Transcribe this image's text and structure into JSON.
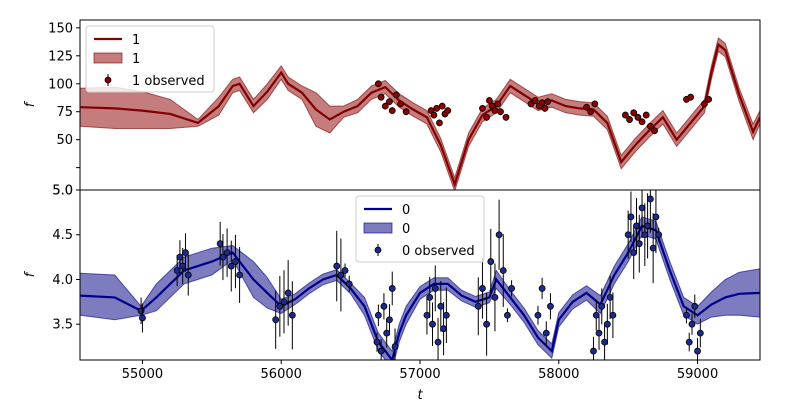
{
  "chart_data": [
    {
      "type": "line",
      "ylabel": "f",
      "xlim": [
        54550,
        59450
      ],
      "ylim": [
        5,
        157
      ],
      "yticks": [
        5,
        25,
        50,
        75,
        100,
        125,
        150
      ],
      "ytick_labels": [
        "5.0",
        "",
        "50",
        "75",
        "100",
        "125",
        "150"
      ],
      "legend_position": "upper-left",
      "legend": [
        "1",
        "1",
        "1 observed"
      ],
      "colors": {
        "line": "#800000",
        "band": "#b05050",
        "points": "#8b0000"
      },
      "model": {
        "x": [
          54550,
          54800,
          55000,
          55200,
          55400,
          55550,
          55650,
          55700,
          55800,
          55900,
          56000,
          56050,
          56150,
          56250,
          56350,
          56450,
          56550,
          56650,
          56750,
          56850,
          56950,
          57050,
          57150,
          57250,
          57350,
          57450,
          57550,
          57650,
          57750,
          57850,
          57950,
          58050,
          58150,
          58250,
          58350,
          58450,
          58550,
          58650,
          58750,
          58850,
          58950,
          59050,
          59100,
          59150,
          59200,
          59300,
          59400,
          59450
        ],
        "y": [
          79,
          78,
          76,
          73,
          65,
          80,
          98,
          100,
          80,
          93,
          110,
          100,
          92,
          77,
          68,
          75,
          80,
          92,
          97,
          85,
          77,
          70,
          45,
          10,
          50,
          72,
          80,
          98,
          90,
          82,
          85,
          80,
          78,
          77,
          65,
          30,
          45,
          58,
          70,
          50,
          65,
          80,
          110,
          135,
          130,
          90,
          57,
          70
        ],
        "lower": [
          62,
          60,
          60,
          60,
          62,
          72,
          92,
          94,
          74,
          86,
          104,
          94,
          86,
          62,
          56,
          70,
          74,
          86,
          91,
          79,
          71,
          64,
          39,
          4,
          44,
          66,
          74,
          92,
          84,
          76,
          79,
          74,
          72,
          71,
          59,
          24,
          39,
          52,
          64,
          44,
          59,
          74,
          104,
          129,
          124,
          84,
          50,
          64
        ],
        "upper": [
          96,
          97,
          93,
          86,
          68,
          88,
          104,
          106,
          86,
          100,
          116,
          106,
          98,
          92,
          80,
          80,
          86,
          98,
          103,
          91,
          83,
          76,
          51,
          16,
          56,
          78,
          86,
          104,
          96,
          88,
          91,
          86,
          84,
          83,
          71,
          36,
          51,
          64,
          76,
          56,
          71,
          86,
          116,
          141,
          136,
          96,
          64,
          76
        ]
      },
      "observed": {
        "x": [
          56700,
          56720,
          56750,
          56780,
          56800,
          56830,
          56860,
          56900,
          57080,
          57100,
          57120,
          57140,
          57160,
          57180,
          57200,
          57450,
          57480,
          57500,
          57520,
          57540,
          57560,
          57580,
          57620,
          57800,
          57830,
          57860,
          57880,
          57900,
          57920,
          58200,
          58230,
          58260,
          58480,
          58510,
          58540,
          58570,
          58600,
          58630,
          58660,
          58690,
          58920,
          58950,
          59050,
          59080
        ],
        "y": [
          100,
          88,
          80,
          84,
          76,
          90,
          82,
          75,
          76,
          72,
          78,
          65,
          80,
          73,
          76,
          78,
          70,
          85,
          80,
          76,
          82,
          75,
          70,
          82,
          85,
          80,
          83,
          78,
          84,
          79,
          75,
          82,
          72,
          68,
          74,
          70,
          66,
          72,
          62,
          58,
          86,
          88,
          82,
          86
        ]
      }
    },
    {
      "type": "line",
      "xlabel": "t",
      "ylabel": "f",
      "xlim": [
        54550,
        59450
      ],
      "ylim": [
        3.1,
        5.0
      ],
      "xticks": [
        55000,
        56000,
        57000,
        58000,
        59000
      ],
      "yticks": [
        3.5,
        4.0,
        4.5,
        5.0
      ],
      "ytick_labels": [
        "3.5",
        "4.0",
        "4.5",
        "5.0"
      ],
      "legend_position": "upper-center",
      "legend": [
        "0",
        "0",
        "0 observed"
      ],
      "colors": {
        "line": "#00008b",
        "band": "#5050a8",
        "points": "#1c2a8c"
      },
      "model": {
        "x": [
          54550,
          54800,
          54990,
          55100,
          55300,
          55500,
          55650,
          55800,
          55900,
          56000,
          56100,
          56200,
          56300,
          56400,
          56500,
          56600,
          56700,
          56800,
          56850,
          56900,
          57000,
          57100,
          57200,
          57300,
          57400,
          57500,
          57550,
          57650,
          57750,
          57850,
          57950,
          58000,
          58100,
          58200,
          58300,
          58400,
          58500,
          58600,
          58700,
          58800,
          58900,
          59000,
          59100,
          59200,
          59300,
          59450
        ],
        "y": [
          3.82,
          3.8,
          3.65,
          3.8,
          4.1,
          4.2,
          4.3,
          4.0,
          3.85,
          3.7,
          3.78,
          3.9,
          4.0,
          4.05,
          3.9,
          3.7,
          3.3,
          3.1,
          3.4,
          3.6,
          3.85,
          3.95,
          3.95,
          3.82,
          3.75,
          3.8,
          4.0,
          3.8,
          3.6,
          3.35,
          3.2,
          3.55,
          3.75,
          3.85,
          3.72,
          4.05,
          4.3,
          4.6,
          4.55,
          4.1,
          3.7,
          3.6,
          3.72,
          3.8,
          3.84,
          3.85
        ],
        "lower": [
          3.6,
          3.55,
          3.6,
          3.65,
          3.95,
          4.05,
          4.22,
          3.8,
          3.68,
          3.62,
          3.72,
          3.84,
          3.94,
          3.99,
          3.84,
          3.6,
          3.2,
          3.0,
          3.3,
          3.5,
          3.78,
          3.88,
          3.88,
          3.76,
          3.69,
          3.74,
          3.9,
          3.72,
          3.52,
          3.27,
          3.12,
          3.47,
          3.67,
          3.77,
          3.62,
          3.95,
          4.2,
          4.5,
          4.45,
          4.0,
          3.6,
          3.5,
          3.58,
          3.6,
          3.6,
          3.58
        ],
        "upper": [
          4.07,
          4.05,
          3.7,
          3.95,
          4.25,
          4.35,
          4.38,
          4.2,
          4.02,
          3.78,
          3.84,
          3.96,
          4.06,
          4.11,
          3.96,
          3.8,
          3.4,
          3.2,
          3.5,
          3.7,
          3.92,
          4.02,
          4.02,
          3.88,
          3.81,
          3.86,
          4.1,
          3.88,
          3.68,
          3.43,
          3.28,
          3.63,
          3.83,
          3.93,
          3.82,
          4.15,
          4.4,
          4.7,
          4.65,
          4.2,
          3.8,
          3.7,
          3.86,
          4.0,
          4.08,
          4.12
        ]
      },
      "observed": {
        "x": [
          54990,
          55000,
          55250,
          55270,
          55290,
          55310,
          55330,
          55560,
          55580,
          55610,
          55640,
          55670,
          55700,
          55960,
          55990,
          56020,
          56050,
          56080,
          56400,
          56430,
          56460,
          56490,
          56690,
          56700,
          56720,
          56740,
          56760,
          56780,
          56800,
          56820,
          57050,
          57070,
          57090,
          57110,
          57130,
          57150,
          57170,
          57190,
          57420,
          57450,
          57480,
          57510,
          57540,
          57570,
          57600,
          57630,
          57660,
          57850,
          57880,
          57910,
          57940,
          58250,
          58270,
          58290,
          58310,
          58330,
          58350,
          58370,
          58390,
          58500,
          58520,
          58540,
          58560,
          58580,
          58600,
          58620,
          58640,
          58660,
          58680,
          58700,
          58720,
          58920,
          58940,
          58960,
          58980,
          59000,
          59020
        ],
        "y": [
          3.65,
          3.57,
          4.1,
          4.25,
          4.15,
          4.3,
          4.05,
          4.4,
          4.25,
          4.3,
          4.15,
          4.2,
          4.05,
          3.55,
          3.7,
          3.75,
          3.85,
          3.6,
          4.15,
          4.05,
          4.1,
          3.95,
          3.3,
          3.6,
          3.2,
          3.7,
          3.4,
          3.55,
          3.9,
          3.25,
          3.6,
          3.8,
          3.5,
          3.9,
          3.3,
          3.7,
          3.45,
          3.6,
          3.7,
          3.9,
          3.5,
          4.2,
          3.8,
          4.5,
          4.1,
          3.6,
          3.9,
          3.6,
          3.9,
          3.4,
          3.7,
          3.2,
          3.6,
          3.4,
          3.7,
          3.3,
          3.5,
          3.8,
          3.6,
          4.5,
          4.7,
          4.3,
          4.6,
          4.4,
          4.8,
          4.5,
          4.6,
          4.9,
          4.35,
          4.7,
          4.5,
          3.6,
          3.3,
          3.5,
          3.7,
          3.2,
          3.4
        ]
      }
    }
  ]
}
